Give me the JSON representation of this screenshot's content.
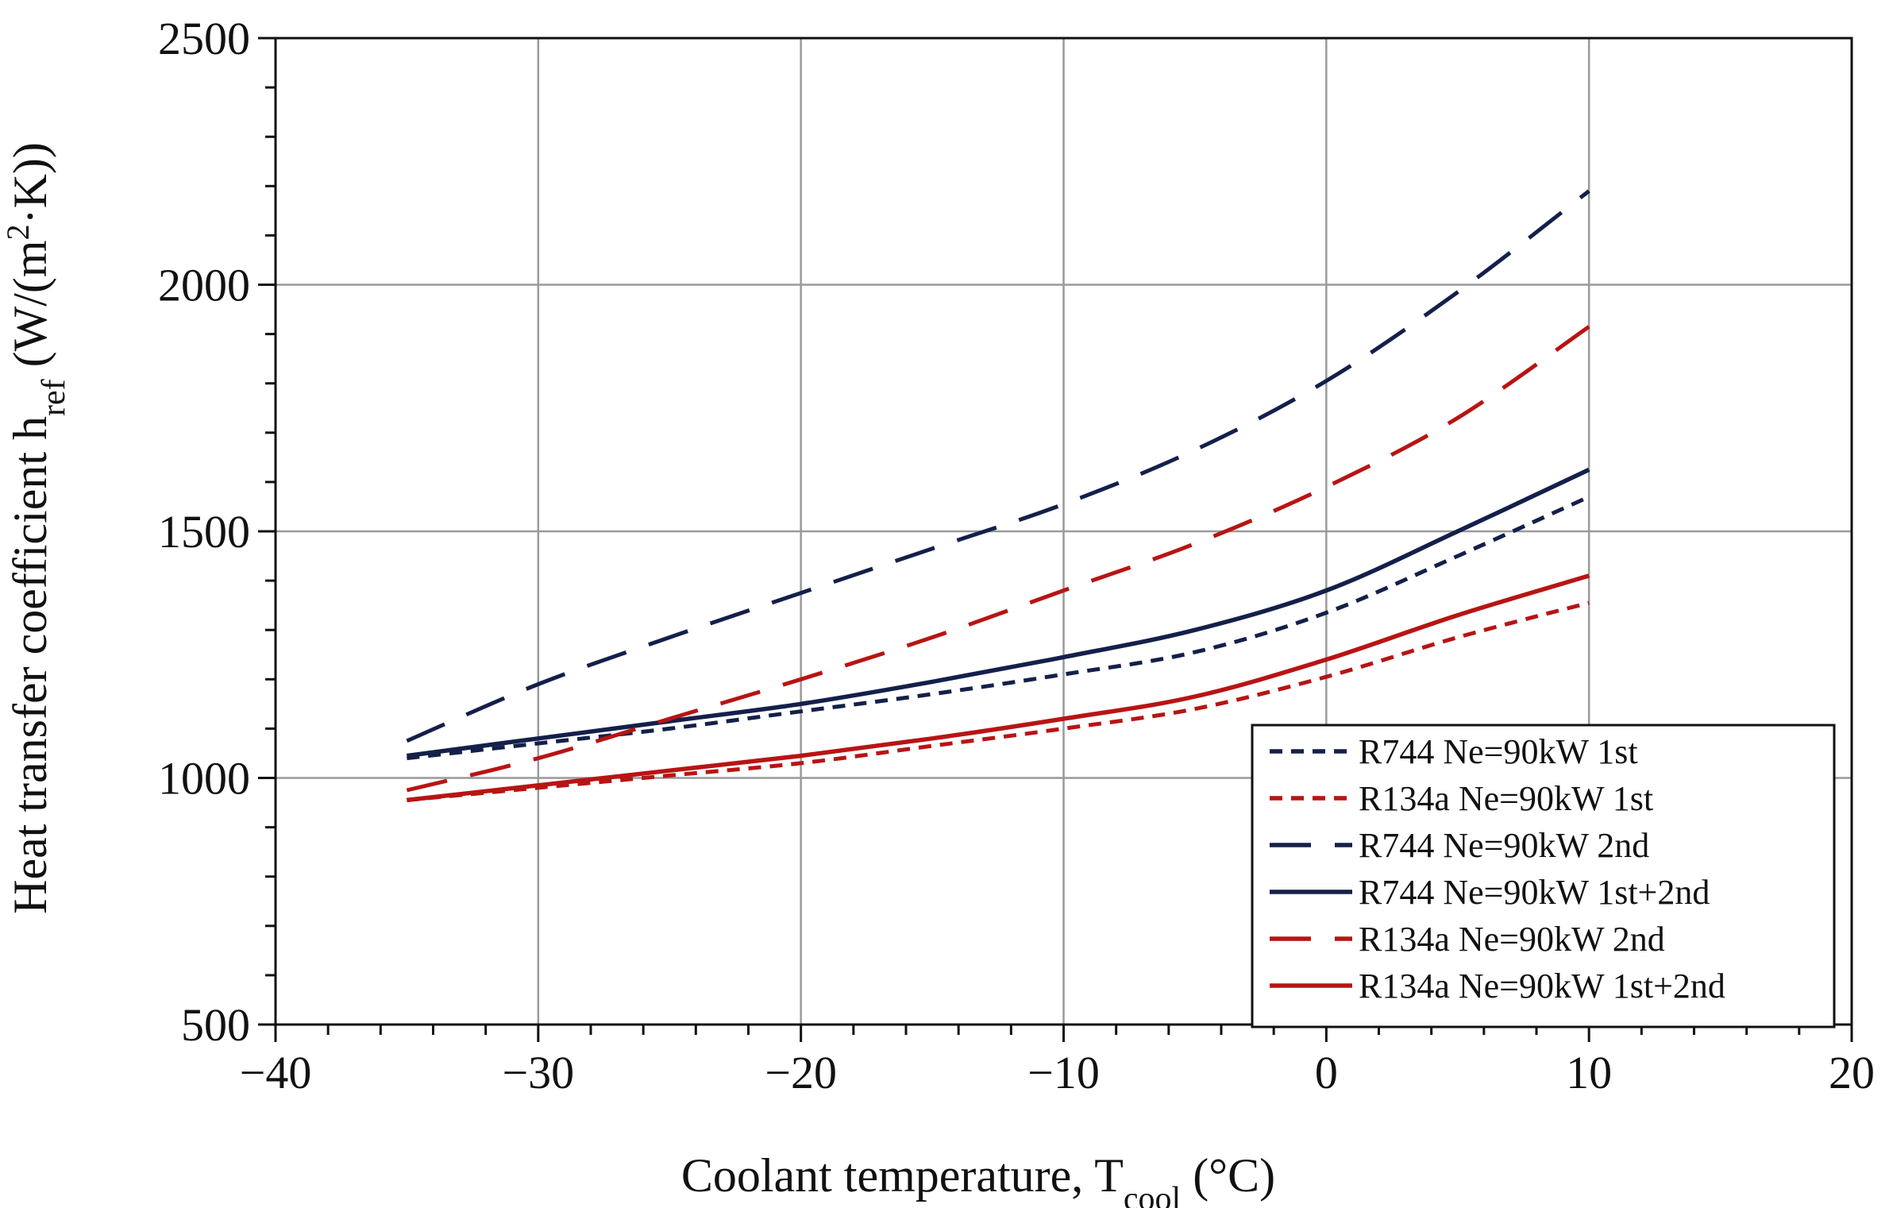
{
  "chart_data": {
    "type": "line",
    "title": "",
    "xlabel": {
      "main": "Coolant temperature, T",
      "sub": "cool",
      "suffix": " (°C)"
    },
    "ylabel": {
      "main": "Heat transfer coefficient h",
      "sub": "ref",
      "mid": " (W/(m",
      "sup": "2",
      "suffix": "·K))"
    },
    "xlim": [
      -40,
      20
    ],
    "ylim": [
      500,
      2500
    ],
    "xticks": [
      -40,
      -30,
      -20,
      -10,
      0,
      10,
      20
    ],
    "xtick_labels": [
      "−40",
      "−30",
      "−20",
      "−10",
      "0",
      "10",
      "20"
    ],
    "yticks": [
      500,
      1000,
      1500,
      2000,
      2500
    ],
    "ytick_labels": [
      "500",
      "1000",
      "1500",
      "2000",
      "2500"
    ],
    "x_minor_step": 2,
    "y_minor_step": 100,
    "grid": true,
    "legend_position": "bottom-right",
    "series": [
      {
        "name": "R744 Ne=90kW 1st",
        "color": "#14204a",
        "style": "dotted",
        "x": [
          -35,
          -30,
          -25,
          -20,
          -15,
          -10,
          -5,
          0,
          5,
          10
        ],
        "y": [
          1040,
          1070,
          1100,
          1135,
          1170,
          1210,
          1255,
          1335,
          1450,
          1570
        ]
      },
      {
        "name": "R134a Ne=90kW 1st",
        "color": "#b81414",
        "style": "dotted",
        "x": [
          -35,
          -30,
          -25,
          -20,
          -15,
          -10,
          -5,
          0,
          5,
          10
        ],
        "y": [
          955,
          980,
          1005,
          1030,
          1065,
          1100,
          1140,
          1205,
          1285,
          1355
        ]
      },
      {
        "name": "R744 Ne=90kW 2nd",
        "color": "#14204a",
        "style": "dashed",
        "x": [
          -35,
          -30,
          -25,
          -20,
          -15,
          -10,
          -5,
          0,
          5,
          10
        ],
        "y": [
          1075,
          1190,
          1285,
          1375,
          1465,
          1555,
          1665,
          1805,
          1985,
          2190
        ]
      },
      {
        "name": "R744 Ne=90kW 1st+2nd",
        "color": "#14204a",
        "style": "solid",
        "x": [
          -35,
          -30,
          -25,
          -20,
          -15,
          -10,
          -5,
          0,
          5,
          10
        ],
        "y": [
          1045,
          1080,
          1115,
          1150,
          1195,
          1245,
          1300,
          1380,
          1500,
          1625
        ]
      },
      {
        "name": "R134a Ne=90kW 2nd",
        "color": "#b81414",
        "style": "dashed",
        "x": [
          -35,
          -30,
          -25,
          -20,
          -15,
          -10,
          -5,
          0,
          5,
          10
        ],
        "y": [
          975,
          1040,
          1120,
          1200,
          1285,
          1380,
          1475,
          1590,
          1730,
          1915
        ]
      },
      {
        "name": "R134a Ne=90kW 1st+2nd",
        "color": "#b81414",
        "style": "solid",
        "x": [
          -35,
          -30,
          -25,
          -20,
          -15,
          -10,
          -5,
          0,
          5,
          10
        ],
        "y": [
          955,
          985,
          1015,
          1045,
          1080,
          1120,
          1165,
          1240,
          1330,
          1410
        ]
      }
    ]
  }
}
